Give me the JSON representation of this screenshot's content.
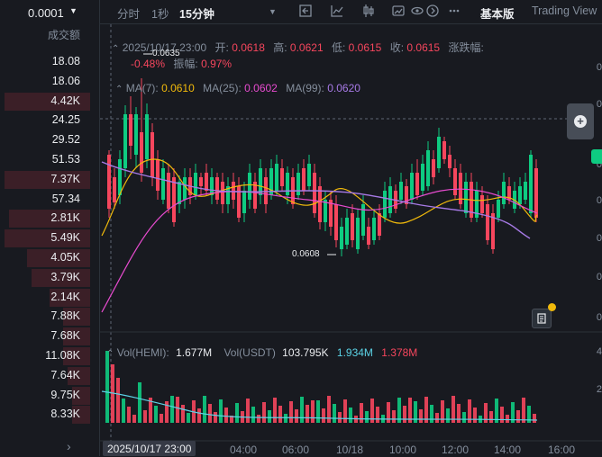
{
  "left_panel": {
    "price_precision": "0.0001",
    "volume_header": "成交额",
    "volumes": [
      {
        "text": "18.08",
        "depth": 0
      },
      {
        "text": "18.06",
        "depth": 0
      },
      {
        "text": "4.42K",
        "depth": 0.95
      },
      {
        "text": "24.25",
        "depth": 0
      },
      {
        "text": "29.52",
        "depth": 0
      },
      {
        "text": "51.53",
        "depth": 0
      },
      {
        "text": "7.37K",
        "depth": 0.95
      },
      {
        "text": "57.34",
        "depth": 0
      },
      {
        "text": "2.81K",
        "depth": 0.9
      },
      {
        "text": "5.49K",
        "depth": 0.95
      },
      {
        "text": "4.05K",
        "depth": 0.7
      },
      {
        "text": "3.79K",
        "depth": 0.65
      },
      {
        "text": "2.14K",
        "depth": 0.45
      },
      {
        "text": "7.88K",
        "depth": 0.3
      },
      {
        "text": "7.68K",
        "depth": 0.3
      },
      {
        "text": "11.08K",
        "depth": 0.3
      },
      {
        "text": "7.64K",
        "depth": 0.25
      },
      {
        "text": "9.75K",
        "depth": 0.2
      },
      {
        "text": "8.33K",
        "depth": 0.2
      }
    ]
  },
  "toolbar": {
    "intervals": [
      "分时",
      "1秒",
      "15分钟"
    ],
    "active_interval": "15分钟",
    "view_basic": "基本版",
    "view_tradingview": "Trading View"
  },
  "legend": {
    "date": "2025/10/17 23:00",
    "open_label": "开:",
    "open": "0.0618",
    "high_label": "高:",
    "high": "0.0621",
    "low_label": "低:",
    "low": "0.0615",
    "close_label": "收:",
    "close": "0.0615",
    "change_label": "涨跌幅:",
    "change": "-0.48%",
    "amplitude_label": "振幅:",
    "amplitude": "0.97%",
    "ma7_label": "MA(7):",
    "ma7": "0.0610",
    "ma25_label": "MA(25):",
    "ma25": "0.0602",
    "ma99_label": "MA(99):",
    "ma99": "0.0620",
    "vol_hemi_label": "Vol(HEMI):",
    "vol_hemi": "1.677M",
    "vol_usdt_label": "Vol(USDT)",
    "vol_usdt": "103.795K",
    "vol_ma1": "1.934M",
    "vol_ma2": "1.378M"
  },
  "annotations": {
    "high_mark": "0.0635",
    "low_mark": "0.0608"
  },
  "price_axis": [
    "0",
    "0",
    "0",
    "0",
    "0",
    "0",
    "0"
  ],
  "volume_axis": [
    "4",
    "2"
  ],
  "time_axis": {
    "cursor": "2025/10/17 23:00",
    "labels": [
      "04:00",
      "06:00",
      "10/18",
      "10:00",
      "12:00",
      "14:00",
      "16:00"
    ]
  },
  "colors": {
    "up": "#0ecb81",
    "down": "#f6465d",
    "ma7": "#f0b90b",
    "ma25": "#e74bcf",
    "ma99": "#a77ae6",
    "vol_ma1": "#5bd3e6"
  }
}
